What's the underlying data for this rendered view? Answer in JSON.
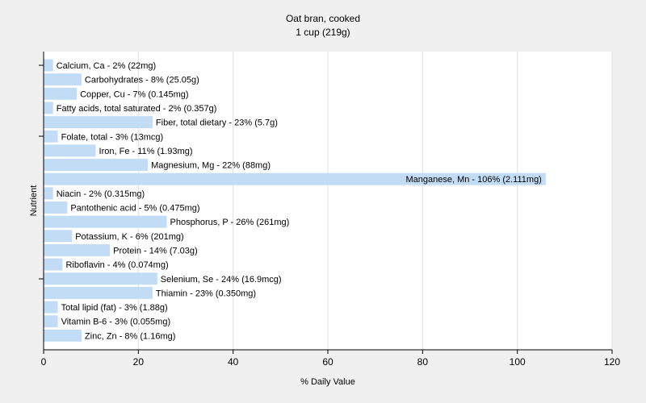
{
  "chart_data": {
    "type": "bar",
    "orientation": "horizontal",
    "title": "Oat bran, cooked",
    "subtitle": "1 cup (219g)",
    "xlabel": "% Daily Value",
    "ylabel": "Nutrient",
    "xlim": [
      0,
      120
    ],
    "xticks": [
      0,
      20,
      40,
      60,
      80,
      100,
      120
    ],
    "grid": true,
    "colors": {
      "bar": "#c3dcf5",
      "background": "#f0f0f0",
      "plot": "#ffffff",
      "grid": "#e0e0e0",
      "axis": "#000000"
    },
    "categories": [
      "Calcium, Ca - 2% (22mg)",
      "Carbohydrates - 8% (25.05g)",
      "Copper, Cu - 7% (0.145mg)",
      "Fatty acids, total saturated - 2% (0.357g)",
      "Fiber, total dietary - 23% (5.7g)",
      "Folate, total - 3% (13mcg)",
      "Iron, Fe - 11% (1.93mg)",
      "Magnesium, Mg - 22% (88mg)",
      "Manganese, Mn - 106% (2.111mg)",
      "Niacin - 2% (0.315mg)",
      "Pantothenic acid - 5% (0.475mg)",
      "Phosphorus, P - 26% (261mg)",
      "Potassium, K - 6% (201mg)",
      "Protein - 14% (7.03g)",
      "Riboflavin - 4% (0.074mg)",
      "Selenium, Se - 24% (16.9mcg)",
      "Thiamin - 23% (0.350mg)",
      "Total lipid (fat) - 3% (1.88g)",
      "Vitamin B-6 - 3% (0.055mg)",
      "Zinc, Zn - 8% (1.16mg)"
    ],
    "values": [
      2,
      8,
      7,
      2,
      23,
      3,
      11,
      22,
      106,
      2,
      5,
      26,
      6,
      14,
      4,
      24,
      23,
      3,
      3,
      8
    ]
  }
}
